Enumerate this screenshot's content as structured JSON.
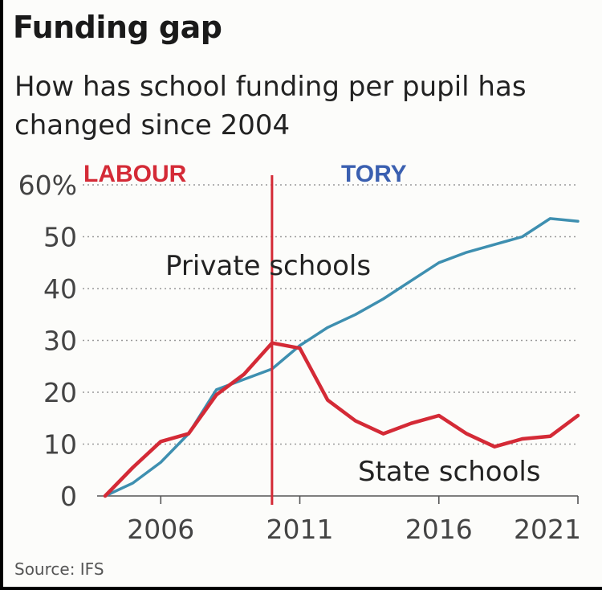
{
  "chart_data": {
    "type": "line",
    "title": "Funding gap",
    "subtitle": "How has school funding per pupil has changed since 2004",
    "source": "Source: IFS",
    "ylim": [
      0,
      60
    ],
    "yticks": [
      0,
      10,
      20,
      30,
      40,
      50,
      60
    ],
    "ytick_labels": [
      "0",
      "10",
      "20",
      "30",
      "40",
      "50",
      "60%"
    ],
    "xlim": [
      2004,
      2021
    ],
    "xticks": [
      2006,
      2011,
      2016,
      2021
    ],
    "xtick_labels": [
      "2006",
      "2011",
      "2016",
      "2021"
    ],
    "grid": "horizontal dotted",
    "era_divider": 2010,
    "era_labels": [
      {
        "label": "LABOUR",
        "color": "#d42a36"
      },
      {
        "label": "TORY",
        "color": "#3a5fb0"
      }
    ],
    "series": [
      {
        "name": "Private schools",
        "color": "#3e8fb0",
        "x": [
          2004,
          2005,
          2006,
          2007,
          2008,
          2009,
          2010,
          2011,
          2012,
          2013,
          2014,
          2015,
          2016,
          2017,
          2018,
          2019,
          2020,
          2021
        ],
        "y": [
          0,
          2.5,
          6.5,
          12,
          20.5,
          22.5,
          24.5,
          29,
          32.5,
          35,
          38,
          41.5,
          45,
          47,
          48.5,
          50,
          53.5,
          53
        ]
      },
      {
        "name": "State schools",
        "color": "#d42a36",
        "x": [
          2004,
          2005,
          2006,
          2007,
          2008,
          2009,
          2010,
          2011,
          2012,
          2013,
          2014,
          2015,
          2016,
          2017,
          2018,
          2019,
          2020,
          2021
        ],
        "y": [
          0,
          5.5,
          10.5,
          12,
          19.5,
          23.5,
          29.5,
          28.5,
          18.5,
          14.5,
          12,
          14,
          15.5,
          12,
          9.5,
          11,
          11.5,
          15.5
        ]
      }
    ]
  }
}
